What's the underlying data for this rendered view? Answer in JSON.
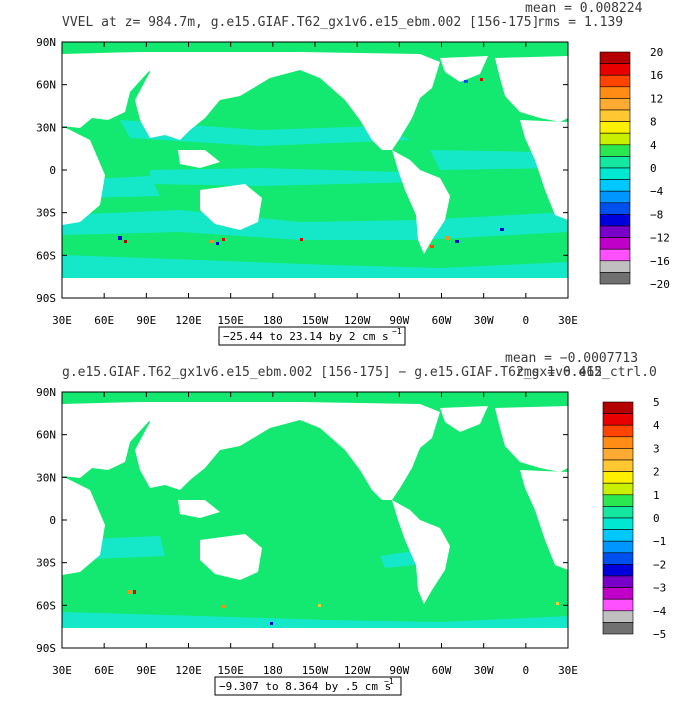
{
  "panels": [
    {
      "title": "VVEL at z= 984.7m, g.e15.GIAF.T62_gx1v6.e15_ebm.002 [156-175]",
      "stat_mean": "mean = 0.008224",
      "stat_rms": "rms = 1.139",
      "range_label": "−25.44 to 23.14 by 2 cm s",
      "range_exp": "−1",
      "lat_ticks": [
        "90N",
        "60N",
        "30N",
        "0",
        "30S",
        "60S",
        "90S"
      ],
      "lon_ticks": [
        "30E",
        "60E",
        "90E",
        "120E",
        "150E",
        "180",
        "150W",
        "120W",
        "90W",
        "60W",
        "30W",
        "0",
        "30E"
      ],
      "colorbar_labels": [
        "20",
        "16",
        "12",
        "8",
        "4",
        "0",
        "−4",
        "−8",
        "−12",
        "−16",
        "−20"
      ]
    },
    {
      "title": "g.e15.GIAF.T62_gx1v6.e15_ebm.002 [156-175] − g.e15.GIAF.T62_gx1v6.e15_ctrl.0",
      "stat_mean": "mean = −0.0007713",
      "stat_rms": "rms = 0.462",
      "range_label": "−9.307 to 8.364 by .5 cm s",
      "range_exp": "−1",
      "lat_ticks": [
        "90N",
        "60N",
        "30N",
        "0",
        "30S",
        "60S",
        "90S"
      ],
      "lon_ticks": [
        "30E",
        "60E",
        "90E",
        "120E",
        "150E",
        "180",
        "150W",
        "120W",
        "90W",
        "60W",
        "30W",
        "0",
        "30E"
      ],
      "colorbar_labels": [
        "5",
        "4",
        "3",
        "2",
        "1",
        "0",
        "−1",
        "−2",
        "−3",
        "−4",
        "−5"
      ]
    }
  ],
  "colors": {
    "ocean_main": "#13e870",
    "ocean_alt": "#15e8c8",
    "land": "#ffffff",
    "colorbar": [
      "#b40000",
      "#e80000",
      "#ff4400",
      "#ff8c14",
      "#ffaa32",
      "#ffc832",
      "#fff000",
      "#c8f000",
      "#2ce850",
      "#14e8a0",
      "#00e8d2",
      "#00c8ff",
      "#0096ff",
      "#0050f0",
      "#0000dc",
      "#7800c8",
      "#c000c8",
      "#ff50ff",
      "#c0c0c0",
      "#707070"
    ]
  }
}
